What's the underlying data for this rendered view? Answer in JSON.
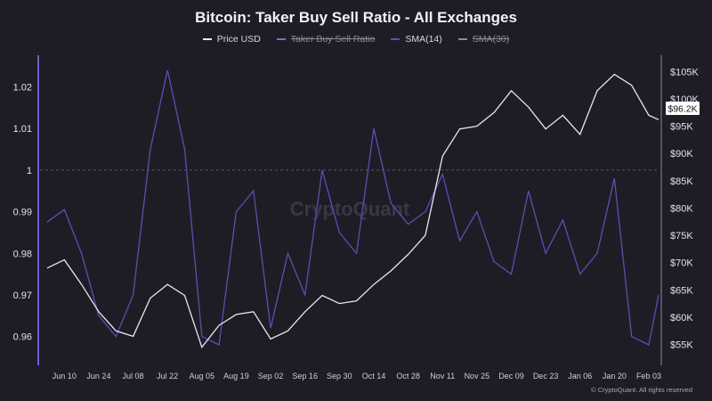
{
  "title": "Bitcoin: Taker Buy Sell Ratio - All Exchanges",
  "legend": [
    {
      "label": "Price USD",
      "color": "#e8e6ef",
      "hidden": false
    },
    {
      "label": "Taker Buy Sell Ratio",
      "color": "#7a6fc0",
      "hidden": true
    },
    {
      "label": "SMA(14)",
      "color": "#5b4fb0",
      "hidden": false
    },
    {
      "label": "SMA(30)",
      "color": "#8e8b99",
      "hidden": true
    }
  ],
  "watermark": "CryptoQuant",
  "copyright": "© CryptoQuant. All rights reserved",
  "price_badge": "$96.2K",
  "colors": {
    "background": "#1f1c26",
    "price_line": "#e8e6ef",
    "sma_line": "#5b4fb0",
    "left_axis": "#6a5fd0",
    "badge_bg": "#ffffff",
    "badge_text": "#111111"
  },
  "chart_data": {
    "type": "line",
    "x": [
      "2024-06-03",
      "2024-06-10",
      "2024-06-17",
      "2024-06-24",
      "2024-07-01",
      "2024-07-08",
      "2024-07-15",
      "2024-07-22",
      "2024-07-29",
      "2024-08-05",
      "2024-08-12",
      "2024-08-19",
      "2024-08-26",
      "2024-09-02",
      "2024-09-09",
      "2024-09-16",
      "2024-09-23",
      "2024-09-30",
      "2024-10-07",
      "2024-10-14",
      "2024-10-21",
      "2024-10-28",
      "2024-11-04",
      "2024-11-11",
      "2024-11-18",
      "2024-11-25",
      "2024-12-02",
      "2024-12-09",
      "2024-12-16",
      "2024-12-23",
      "2024-12-30",
      "2025-01-06",
      "2025-01-13",
      "2025-01-20",
      "2025-01-27",
      "2025-02-03",
      "2025-02-07"
    ],
    "x_tick_labels": [
      "Jun 10",
      "Jun 24",
      "Jul 08",
      "Jul 22",
      "Aug 05",
      "Aug 19",
      "Sep 02",
      "Sep 16",
      "Sep 30",
      "Oct 14",
      "Oct 28",
      "Nov 11",
      "Nov 25",
      "Dec 09",
      "Dec 23",
      "Jan 06",
      "Jan 20",
      "Feb 03"
    ],
    "y_left": {
      "label": "Taker Buy Sell Ratio",
      "ticks": [
        "1.02",
        "1.01",
        "1",
        "0.99",
        "0.98",
        "0.97",
        "0.96"
      ],
      "range": [
        0.9535,
        1.0276
      ],
      "reference_line": 1.0
    },
    "y_right": {
      "label": "Price USD",
      "ticks": [
        "$105K",
        "$100K",
        "$95K",
        "$90K",
        "$85K",
        "$80K",
        "$75K",
        "$70K",
        "$65K",
        "$60K",
        "$55K"
      ],
      "range": [
        51500,
        108000
      ]
    },
    "series": [
      {
        "name": "SMA(14)",
        "axis": "left",
        "values": [
          0.9875,
          0.9905,
          0.98,
          0.965,
          0.96,
          0.97,
          1.005,
          1.024,
          1.005,
          0.96,
          0.958,
          0.99,
          0.995,
          0.962,
          0.98,
          0.97,
          1.0,
          0.985,
          0.98,
          1.01,
          0.992,
          0.987,
          0.99,
          0.999,
          0.983,
          0.99,
          0.978,
          0.975,
          0.995,
          0.98,
          0.988,
          0.975,
          0.98,
          0.998,
          0.96,
          0.958,
          0.97
        ]
      },
      {
        "name": "Price USD",
        "axis": "right",
        "values": [
          69000,
          70500,
          66000,
          61000,
          57500,
          56500,
          63500,
          66000,
          64000,
          54500,
          58500,
          60500,
          61000,
          56000,
          57500,
          61000,
          64000,
          62500,
          63000,
          66000,
          68500,
          71500,
          75000,
          89500,
          94500,
          95000,
          97500,
          101500,
          98500,
          94500,
          97000,
          93500,
          101500,
          104500,
          102500,
          97000,
          96200
        ]
      }
    ]
  }
}
